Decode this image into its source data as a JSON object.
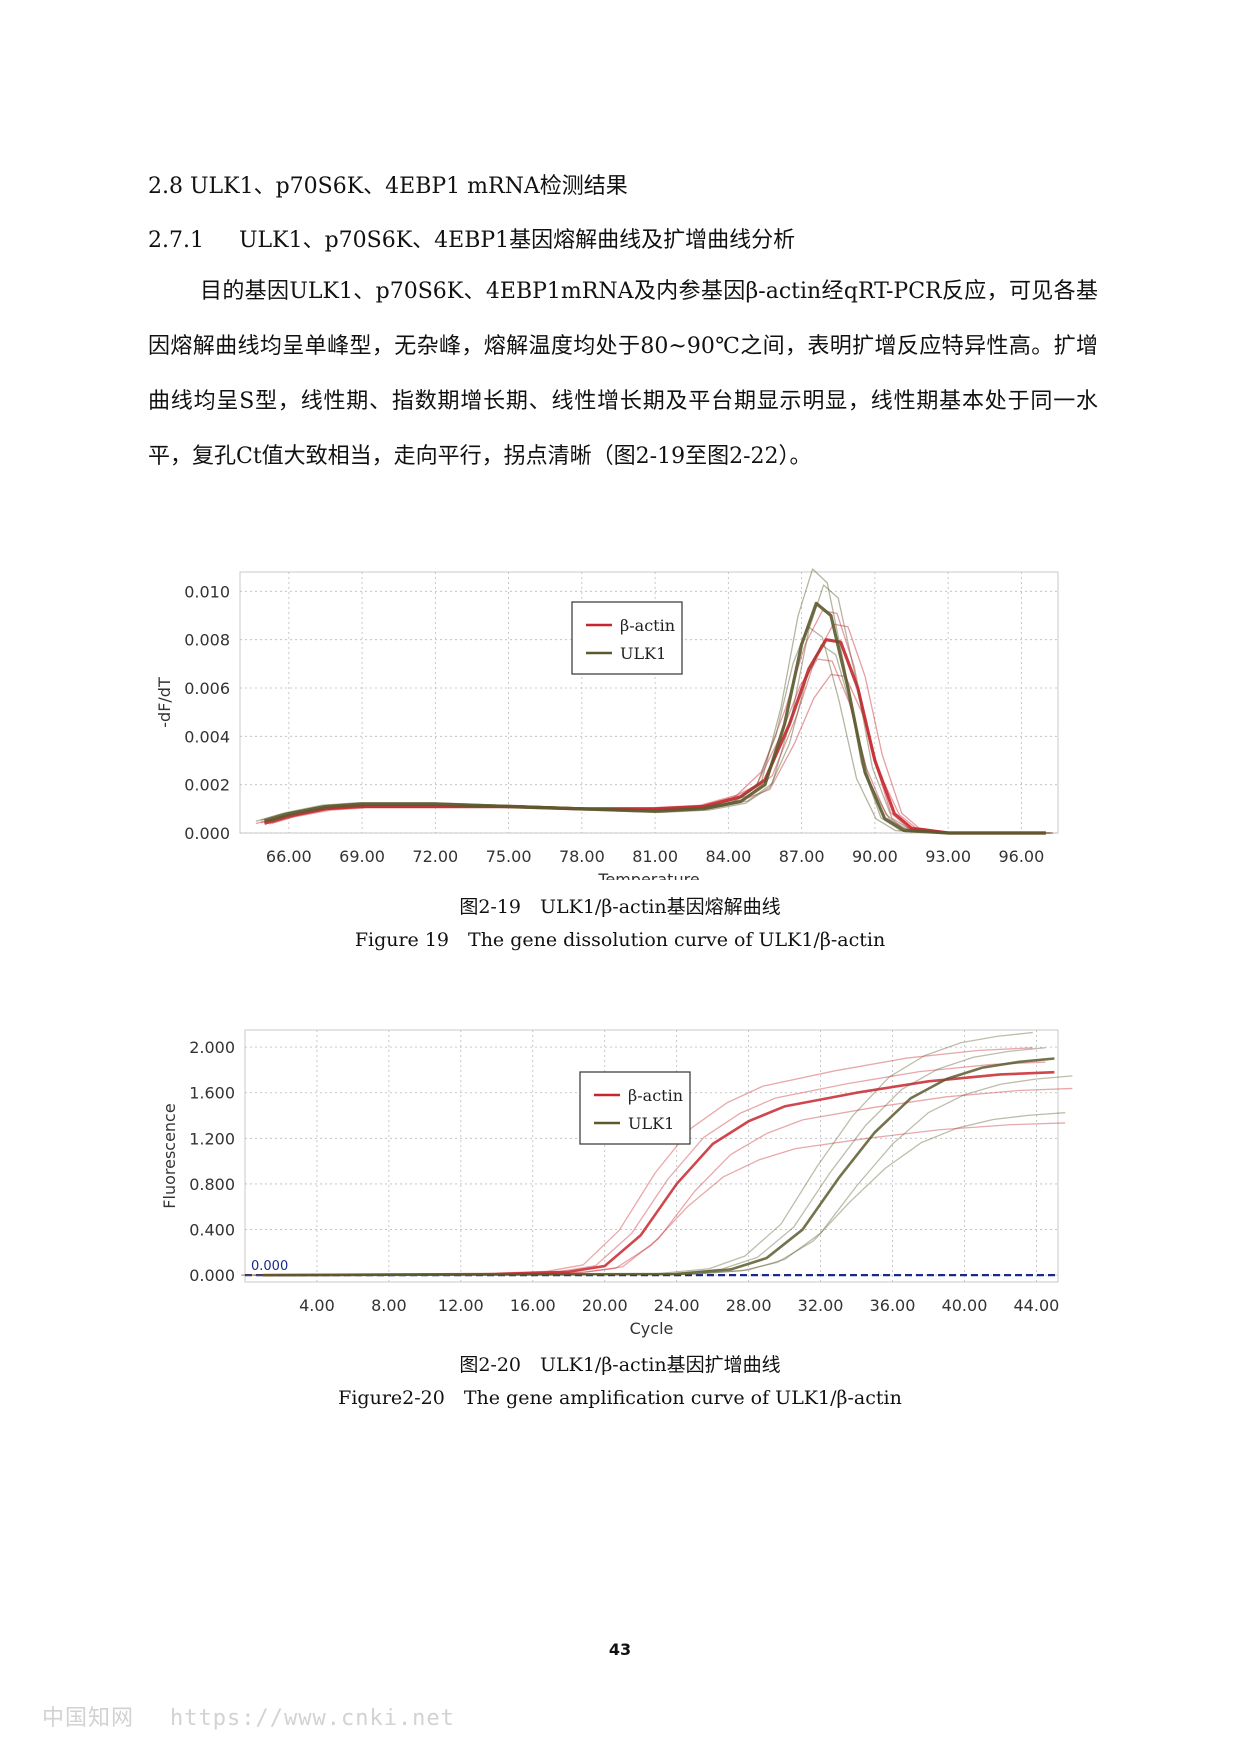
{
  "heading_2_8": "2.8 ULK1、p70S6K、4EBP1 mRNA检测结果",
  "heading_2_7_1_number": "2.7.1",
  "heading_2_7_1_text": "ULK1、p70S6K、4EBP1基因熔解曲线及扩增曲线分析",
  "paragraph": "目的基因ULK1、p70S6K、4EBP1mRNA及内参基因β-actin经qRT-PCR反应，可见各基因熔解曲线均呈单峰型，无杂峰，熔解温度均处于80~90℃之间，表明扩增反应特异性高。扩增曲线均呈S型，线性期、指数期增长期、线性增长期及平台期显示明显，线性期基本处于同一水平，复孔Ct值大致相当，走向平行，拐点清晰（图2-19至图2-22）。",
  "figure19": {
    "caption_cn": "图2-19　ULK1/β-actin基因熔解曲线",
    "caption_en": "Figure 19　The gene dissolution curve of ULK1/β-actin"
  },
  "figure20": {
    "caption_cn": "图2-20　ULK1/β-actin基因扩增曲线",
    "caption_en": "Figure2-20　The gene amplification curve of ULK1/β-actin"
  },
  "page_number": "43",
  "watermark": {
    "site": "中国知网",
    "url": "https://www.cnki.net"
  },
  "colors": {
    "beta_actin": "#c8262e",
    "ulk1": "#5b5a2e",
    "threshold": "#1a2a8a",
    "grid": "#bbbbbb"
  },
  "chart_data": [
    {
      "type": "line",
      "xlabel": "Temperature",
      "ylabel": "-dF/dT",
      "xlim": [
        64,
        97.5
      ],
      "ylim": [
        0,
        0.0108
      ],
      "xticks": [
        "66.00",
        "69.00",
        "72.00",
        "75.00",
        "78.00",
        "81.00",
        "84.00",
        "87.00",
        "90.00",
        "93.00",
        "96.00"
      ],
      "xtick_values": [
        66,
        69,
        72,
        75,
        78,
        81,
        84,
        87,
        90,
        93,
        96
      ],
      "yticks": [
        "0.000",
        "0.002",
        "0.004",
        "0.006",
        "0.008",
        "0.010"
      ],
      "ytick_values": [
        0,
        0.002,
        0.004,
        0.006,
        0.008,
        0.01
      ],
      "grid": true,
      "legend_position": "top-center",
      "series": [
        {
          "name": "β-actin",
          "color": "#c8262e",
          "x": [
            65,
            66,
            67.5,
            69,
            72,
            75,
            78,
            81,
            83,
            84.5,
            85.5,
            86.5,
            87.3,
            88.0,
            88.6,
            89.3,
            90.0,
            90.8,
            91.5,
            93,
            97
          ],
          "y": [
            0.0004,
            0.0007,
            0.001,
            0.0011,
            0.0011,
            0.0011,
            0.001,
            0.001,
            0.0011,
            0.0015,
            0.0022,
            0.0045,
            0.0068,
            0.008,
            0.0079,
            0.006,
            0.003,
            0.0008,
            0.0002,
            0.0,
            0.0
          ]
        },
        {
          "name": "ULK1",
          "color": "#5b5a2e",
          "x": [
            65,
            66,
            67.5,
            69,
            72,
            75,
            78,
            81,
            83,
            84.5,
            85.5,
            86.3,
            87.0,
            87.6,
            88.2,
            88.9,
            89.6,
            90.4,
            91.2,
            93,
            97
          ],
          "y": [
            0.0005,
            0.0008,
            0.0011,
            0.0012,
            0.0012,
            0.0011,
            0.001,
            0.0009,
            0.001,
            0.0013,
            0.002,
            0.0045,
            0.0078,
            0.0095,
            0.009,
            0.006,
            0.0025,
            0.0006,
            0.0001,
            0.0,
            0.0
          ]
        }
      ]
    },
    {
      "type": "line",
      "xlabel": "Cycle",
      "ylabel": "Fluorescence",
      "xlim": [
        0,
        45.2
      ],
      "ylim": [
        -0.06,
        2.15
      ],
      "xticks": [
        "4.00",
        "8.00",
        "12.00",
        "16.00",
        "20.00",
        "24.00",
        "28.00",
        "32.00",
        "36.00",
        "40.00",
        "44.00"
      ],
      "xtick_values": [
        4,
        8,
        12,
        16,
        20,
        24,
        28,
        32,
        36,
        40,
        44
      ],
      "yticks": [
        "0.000",
        "0.400",
        "0.800",
        "1.200",
        "1.600",
        "2.000"
      ],
      "ytick_values": [
        0,
        0.4,
        0.8,
        1.2,
        1.6,
        2.0
      ],
      "grid": true,
      "legend_position": "top-center",
      "threshold": {
        "value": 0.0,
        "label": "0.000"
      },
      "series": [
        {
          "name": "β-actin",
          "color": "#c8262e",
          "x": [
            1,
            14,
            18,
            20,
            22,
            24,
            26,
            28,
            30,
            34,
            38,
            42,
            45
          ],
          "y": [
            0.0,
            0.01,
            0.03,
            0.08,
            0.35,
            0.8,
            1.15,
            1.35,
            1.48,
            1.6,
            1.7,
            1.76,
            1.78
          ]
        },
        {
          "name": "ULK1",
          "color": "#5b5a2e",
          "x": [
            1,
            24,
            27,
            29,
            31,
            33,
            35,
            37,
            39,
            41,
            43,
            45
          ],
          "y": [
            0.0,
            0.01,
            0.05,
            0.15,
            0.4,
            0.85,
            1.25,
            1.55,
            1.72,
            1.82,
            1.87,
            1.9
          ]
        }
      ]
    }
  ]
}
